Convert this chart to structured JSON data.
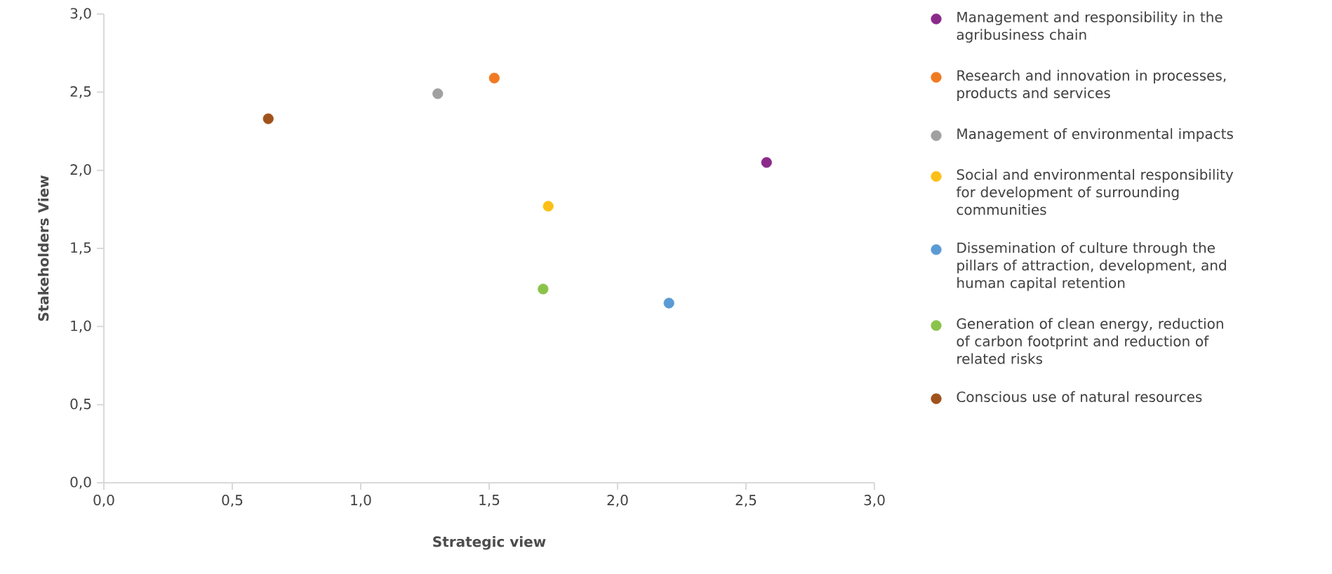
{
  "chart_data": {
    "type": "scatter",
    "xlabel": "Strategic view",
    "ylabel": "Stakeholders View",
    "xlim": [
      0,
      3
    ],
    "ylim": [
      0,
      3
    ],
    "xticks": [
      {
        "value": 0,
        "label": "0,0"
      },
      {
        "value": 0.5,
        "label": "0,5"
      },
      {
        "value": 1,
        "label": "1,0"
      },
      {
        "value": 1.5,
        "label": "1,5"
      },
      {
        "value": 2,
        "label": "2,0"
      },
      {
        "value": 2.5,
        "label": "2,5"
      },
      {
        "value": 3,
        "label": "3,0"
      }
    ],
    "yticks": [
      {
        "value": 0,
        "label": "0,0"
      },
      {
        "value": 0.5,
        "label": "0,5"
      },
      {
        "value": 1,
        "label": "1,0"
      },
      {
        "value": 1.5,
        "label": "1,5"
      },
      {
        "value": 2,
        "label": "2,0"
      },
      {
        "value": 2.5,
        "label": "2,5"
      },
      {
        "value": 3,
        "label": "3,0"
      }
    ],
    "grid": false,
    "legend": "right",
    "marker": "circle",
    "series": [
      {
        "name": "Management and responsibility in the agribusiness chain",
        "color": "#8b2a8b",
        "x": [
          2.58
        ],
        "values": [
          2.05
        ]
      },
      {
        "name": "Research and innovation in processes, products and services",
        "color": "#f07a22",
        "x": [
          1.52
        ],
        "values": [
          2.59
        ]
      },
      {
        "name": "Management of environmental impacts",
        "color": "#a0a0a0",
        "x": [
          1.3
        ],
        "values": [
          2.49
        ]
      },
      {
        "name": "Social and environmental responsibility for development of surrounding communities",
        "color": "#fbbf16",
        "x": [
          1.73
        ],
        "values": [
          1.77
        ]
      },
      {
        "name": "Dissemination of culture through the pillars of attraction, development, and human capital retention",
        "color": "#5b9bd5",
        "x": [
          2.2
        ],
        "values": [
          1.15
        ]
      },
      {
        "name": "Generation of clean energy, reduction of carbon footprint and reduction of related risks",
        "color": "#8bc34a",
        "x": [
          1.71
        ],
        "values": [
          1.24
        ]
      },
      {
        "name": "Conscious use of natural resources",
        "color": "#a0521c",
        "x": [
          0.64
        ],
        "values": [
          2.33
        ]
      }
    ]
  }
}
